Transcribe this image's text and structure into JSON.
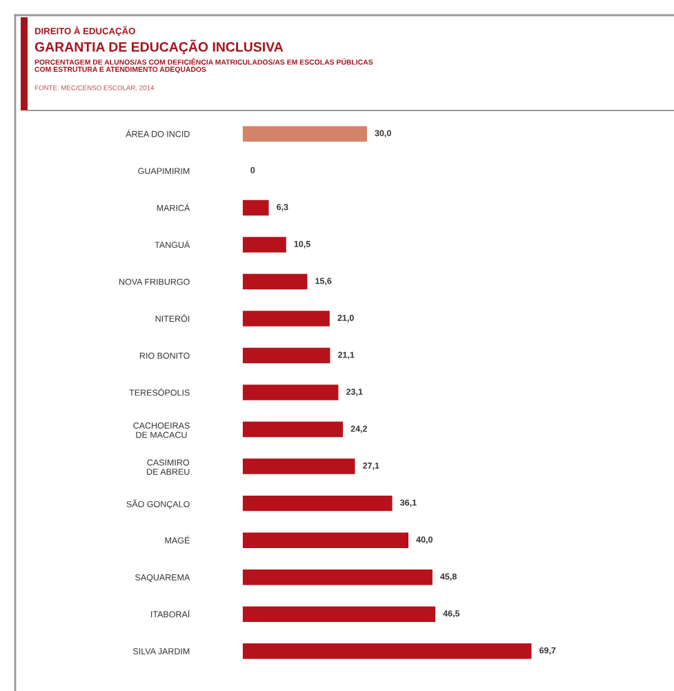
{
  "chart_data": {
    "type": "bar",
    "orientation": "horizontal",
    "title": "GARANTIA DE EDUCAÇÃO INCLUSIVA",
    "subtitle": "PORCENTAGEM DE ALUNOS/AS COM DEFICIÊNCIA MATRICULADOS/AS EM ESCOLAS PÚBLICAS\nCOM ESTRUTURA E ATENDIMENTO ADEQUADOS",
    "annotations": [
      "DIREITO À EDUCAÇÃO",
      "FONTE: MEC/CENSO ESCOLAR, 2014"
    ],
    "categories": [
      "ÁREA DO INCID",
      "GUAPIMIRIM",
      "MARICÁ",
      "TANGUÁ",
      "NOVA FRIBURGO",
      "NITERÓI",
      "RIO BONITO",
      "TERESÓPOLIS",
      "CACHOEIRAS\nDE MACACU",
      "CASIMIRO\nDE ABREU",
      "SÃO GONÇALO",
      "MAGÉ",
      "SAQUAREMA",
      "ITABORAÍ",
      "SILVA JARDIM"
    ],
    "values": [
      30.0,
      0,
      6.3,
      10.5,
      15.6,
      21.0,
      21.1,
      23.1,
      24.2,
      27.1,
      36.1,
      40.0,
      45.8,
      46.5,
      69.7
    ],
    "value_labels": [
      "30,0",
      "0",
      "6,3",
      "10,5",
      "15,6",
      "21,0",
      "21,1",
      "23,1",
      "24,2",
      "27,1",
      "36,1",
      "40,0",
      "45,8",
      "46,5",
      "69,7"
    ],
    "colors": [
      "#d4826a",
      "#b5121b",
      "#b5121b",
      "#b5121b",
      "#b5121b",
      "#b5121b",
      "#b5121b",
      "#b5121b",
      "#b5121b",
      "#b5121b",
      "#b5121b",
      "#b5121b",
      "#b5121b",
      "#b5121b",
      "#b5121b"
    ],
    "tick_labels": "y",
    "grid": false,
    "legend": false
  }
}
